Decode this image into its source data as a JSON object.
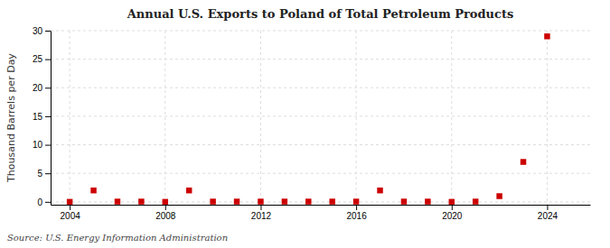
{
  "chart_data": {
    "type": "scatter",
    "title": "Annual U.S. Exports to Poland of Total Petroleum Products",
    "ylabel": "Thousand Barrels per Day",
    "annotations": [
      "Source: U.S. Energy Information Administration"
    ],
    "x": [
      2004,
      2005,
      2006,
      2007,
      2008,
      2009,
      2010,
      2011,
      2012,
      2013,
      2014,
      2015,
      2016,
      2017,
      2018,
      2019,
      2020,
      2021,
      2022,
      2023,
      2024
    ],
    "values": [
      0.0,
      2.0,
      0.05,
      0.05,
      0.0,
      2.0,
      0.05,
      0.05,
      0.05,
      0.05,
      0.05,
      0.05,
      0.05,
      2.0,
      0.05,
      0.05,
      0.0,
      0.05,
      1.0,
      7.0,
      29.0
    ],
    "color": "#cc0000",
    "marker": "square",
    "xlim": [
      2003.2,
      2025.8
    ],
    "ylim": [
      -0.5,
      30
    ],
    "xticks": [
      2004,
      2008,
      2012,
      2016,
      2020,
      2024
    ],
    "yticks": [
      0,
      5,
      10,
      15,
      20,
      25,
      30
    ],
    "grid": true
  }
}
